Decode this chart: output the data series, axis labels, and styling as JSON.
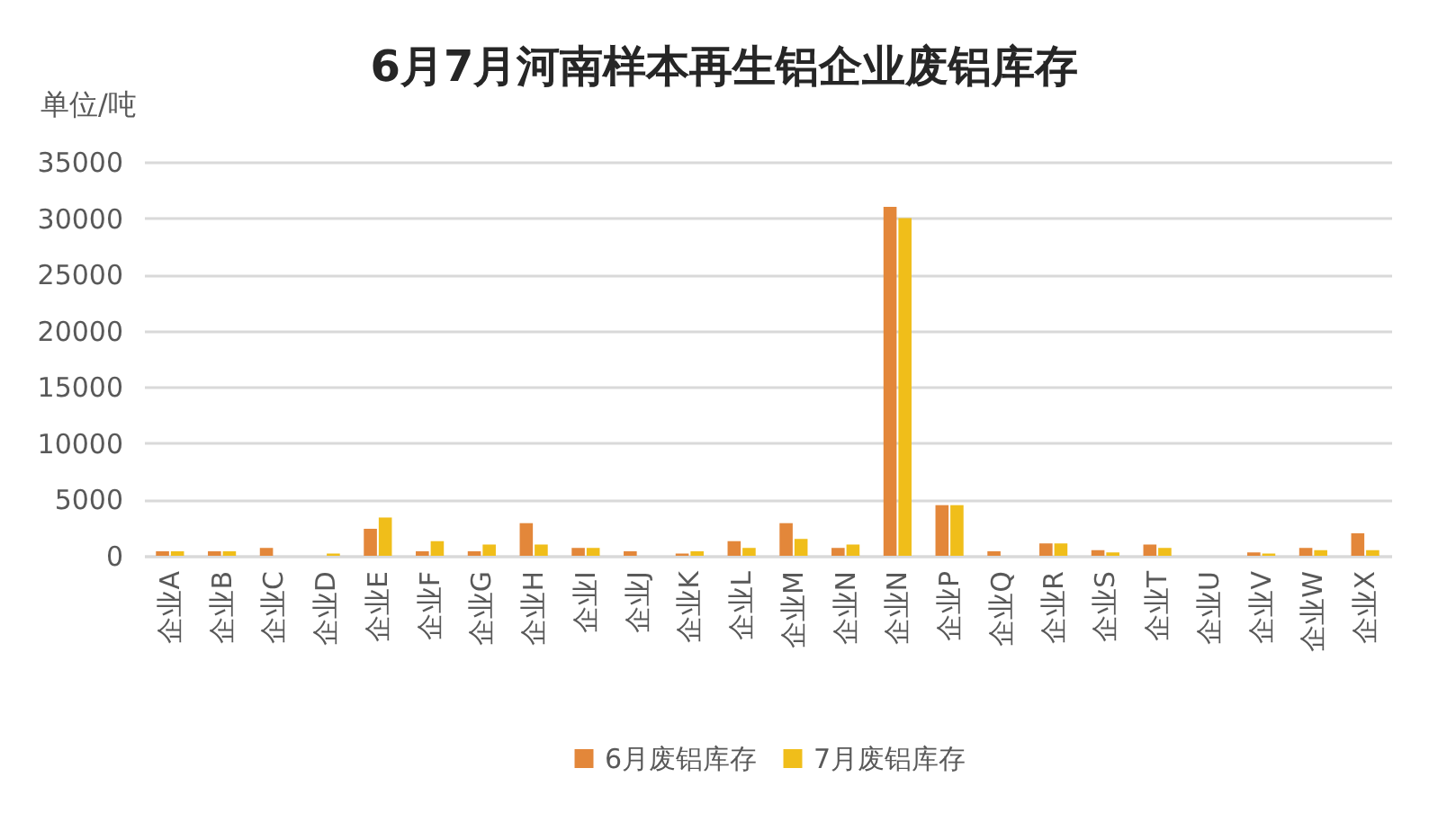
{
  "chart_data": {
    "type": "bar",
    "title": "6月7月河南样本再生铝企业废铝库存",
    "ylabel": "单位/吨",
    "categories": [
      "企业A",
      "企业B",
      "企业C",
      "企业D",
      "企业E",
      "企业F",
      "企业G",
      "企业H",
      "企业I",
      "企业J",
      "企业K",
      "企业L",
      "企业M",
      "企业N",
      "企业N",
      "企业P",
      "企业Q",
      "企业R",
      "企业S",
      "企业T",
      "企业U",
      "企业V",
      "企业W",
      "企业X"
    ],
    "series": [
      {
        "name": "6月废铝库存",
        "color": "#e3873a",
        "values": [
          400,
          400,
          700,
          0,
          2400,
          400,
          400,
          2900,
          700,
          400,
          200,
          1300,
          2900,
          700,
          31000,
          4500,
          400,
          1100,
          500,
          1000,
          0,
          300,
          700,
          2000
        ]
      },
      {
        "name": "7月废铝库存",
        "color": "#f0be1a",
        "values": [
          400,
          400,
          0,
          200,
          3400,
          1300,
          1000,
          1000,
          700,
          0,
          400,
          700,
          1500,
          1000,
          30000,
          4500,
          0,
          1100,
          300,
          700,
          0,
          200,
          500,
          500
        ]
      }
    ],
    "ylim": [
      0,
      35000
    ],
    "yticks": [
      0,
      5000,
      10000,
      15000,
      20000,
      25000,
      30000,
      35000
    ],
    "grid": "y",
    "legend": "bottom"
  }
}
